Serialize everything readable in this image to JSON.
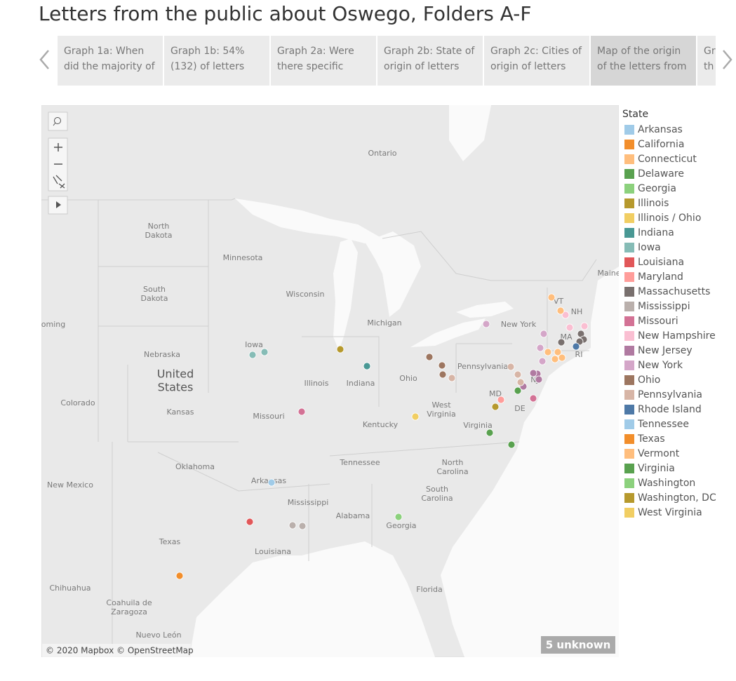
{
  "title": "Letters from the public about Oswego, Folders A-F",
  "tabs": [
    [
      "Graph 1a: When",
      "did the majority of"
    ],
    [
      "Graph 1b: 54%",
      "(132) of letters"
    ],
    [
      "Graph 2a: Were",
      "there specific"
    ],
    [
      "Graph 2b: State of",
      "origin of letters"
    ],
    [
      "Graph 2c: Cities of",
      "origin of letters"
    ],
    [
      "Map of the origin",
      "of the letters from"
    ],
    [
      "Gr",
      "th"
    ]
  ],
  "map": {
    "labels": [
      [
        "Ontario"
      ],
      [
        "North",
        "Dakota"
      ],
      [
        "Minnesota"
      ],
      [
        "Wisconsin"
      ],
      [
        "Michigan"
      ],
      [
        "South",
        "Dakota"
      ],
      [
        "oming"
      ],
      [
        "Iowa"
      ],
      [
        "Nebraska"
      ],
      [
        "United",
        "States"
      ],
      [
        "Illinois"
      ],
      [
        "Indiana"
      ],
      [
        "Ohio"
      ],
      [
        "Pennsylvania"
      ],
      [
        "New York"
      ],
      [
        "VT"
      ],
      [
        "NH"
      ],
      [
        "MA"
      ],
      [
        "RI"
      ],
      [
        "NJ"
      ],
      [
        "MD"
      ],
      [
        "DE"
      ],
      [
        "Colorado"
      ],
      [
        "Kansas"
      ],
      [
        "Missouri"
      ],
      [
        "West",
        "Virginia"
      ],
      [
        "Kentucky"
      ],
      [
        "Virginia"
      ],
      [
        "Tennessee"
      ],
      [
        "North",
        "Carolina"
      ],
      [
        "Oklahoma"
      ],
      [
        "New Mexico"
      ],
      [
        "Arkansas"
      ],
      [
        "Mississippi"
      ],
      [
        "South",
        "Carolina"
      ],
      [
        "Alabama"
      ],
      [
        "Georgia"
      ],
      [
        "Texas"
      ],
      [
        "Louisiana"
      ],
      [
        "Florida"
      ],
      [
        "Chihuahua"
      ],
      [
        "Coahuila de",
        "Zaragoza"
      ],
      [
        "Nuevo León"
      ],
      [
        "Maine"
      ]
    ],
    "attribution": "© 2020 Mapbox © OpenStreetMap",
    "unknown": "5 unknown"
  },
  "legend": {
    "title": "State",
    "items": [
      {
        "name": "Arkansas",
        "color": "#a0cbe8"
      },
      {
        "name": "California",
        "color": "#f28e2b"
      },
      {
        "name": "Connecticut",
        "color": "#ffbe7d"
      },
      {
        "name": "Delaware",
        "color": "#59a14f"
      },
      {
        "name": "Georgia",
        "color": "#8cd17d"
      },
      {
        "name": "Illinois",
        "color": "#b6992d"
      },
      {
        "name": "Illinois / Ohio",
        "color": "#f1ce63"
      },
      {
        "name": "Indiana",
        "color": "#499894"
      },
      {
        "name": "Iowa",
        "color": "#86bcb6"
      },
      {
        "name": "Louisiana",
        "color": "#e15759"
      },
      {
        "name": "Maryland",
        "color": "#ff9d9a"
      },
      {
        "name": "Massachusetts",
        "color": "#79706e"
      },
      {
        "name": "Mississippi",
        "color": "#bab0ac"
      },
      {
        "name": "Missouri",
        "color": "#d37295"
      },
      {
        "name": "New Hampshire",
        "color": "#fabfd2"
      },
      {
        "name": "New Jersey",
        "color": "#b07aa1"
      },
      {
        "name": "New York",
        "color": "#d4a6c8"
      },
      {
        "name": "Ohio",
        "color": "#9d7660"
      },
      {
        "name": "Pennsylvania",
        "color": "#d7b5a6"
      },
      {
        "name": "Rhode Island",
        "color": "#4e79a7"
      },
      {
        "name": "Tennessee",
        "color": "#a0cbe8"
      },
      {
        "name": "Texas",
        "color": "#f28e2b"
      },
      {
        "name": "Vermont",
        "color": "#ffbe7d"
      },
      {
        "name": "Virginia",
        "color": "#59a14f"
      },
      {
        "name": "Washington",
        "color": "#8cd17d"
      },
      {
        "name": "Washington, DC",
        "color": "#b6992d"
      },
      {
        "name": "West Virginia",
        "color": "#f1ce63"
      }
    ]
  }
}
